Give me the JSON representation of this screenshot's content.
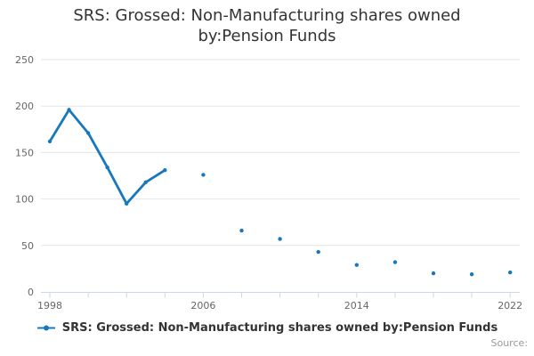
{
  "title": "SRS: Grossed: Non-Manufacturing shares owned by:Pension Funds",
  "legend": {
    "label": "SRS: Grossed: Non-Manufacturing shares owned by:Pension Funds"
  },
  "credits": "Source:",
  "colors": {
    "series": "#1878bf",
    "grid": "#e6e6e6",
    "axis": "#ccd6eb",
    "tick_label": "#666666",
    "title": "#333333",
    "credits": "#999999"
  },
  "chart_data": {
    "type": "line",
    "title": "SRS: Grossed: Non-Manufacturing shares owned by:Pension Funds",
    "xlabel": "",
    "ylabel": "",
    "xlim": [
      1997.5,
      2022.5
    ],
    "ylim": [
      0,
      250
    ],
    "yticks": [
      0,
      50,
      100,
      150,
      200,
      250
    ],
    "xticks_labeled": [
      1998,
      2006,
      2014,
      2022
    ],
    "xtick_interval": 2,
    "grid": "horizontal",
    "legend_position": "bottom",
    "marker": "circle",
    "series": [
      {
        "name": "SRS: Grossed: Non-Manufacturing shares owned by:Pension Funds",
        "data": [
          [
            1998,
            162
          ],
          [
            1999,
            196
          ],
          [
            2000,
            171
          ],
          [
            2001,
            134
          ],
          [
            2002,
            95
          ],
          [
            2003,
            118
          ],
          [
            2004,
            131
          ],
          [
            2005,
            null
          ],
          [
            2006,
            126
          ],
          [
            2007,
            null
          ],
          [
            2008,
            66
          ],
          [
            2009,
            null
          ],
          [
            2010,
            57
          ],
          [
            2011,
            null
          ],
          [
            2012,
            43
          ],
          [
            2013,
            null
          ],
          [
            2014,
            29
          ],
          [
            2015,
            null
          ],
          [
            2016,
            32
          ],
          [
            2017,
            null
          ],
          [
            2018,
            20
          ],
          [
            2019,
            null
          ],
          [
            2020,
            19
          ],
          [
            2021,
            null
          ],
          [
            2022,
            21
          ]
        ]
      }
    ]
  }
}
